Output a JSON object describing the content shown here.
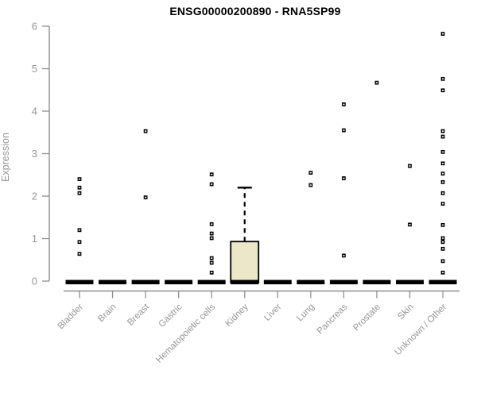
{
  "title": "ENSG00000200890 - RNA5SP99",
  "chart_data": {
    "type": "boxplot",
    "title": "ENSG00000200890 - RNA5SP99",
    "xlabel": "",
    "ylabel": "Expression",
    "ylim": [
      0,
      6
    ],
    "yticks": [
      0,
      1,
      2,
      3,
      4,
      5,
      6
    ],
    "grid": false,
    "legend": "none",
    "categories": [
      "Bladder",
      "Brain",
      "Breast",
      "Gastric",
      "Hematopoietic cells",
      "Kidney",
      "Liver",
      "Lung",
      "Pancreas",
      "Prostate",
      "Skin",
      "Unknown / Other"
    ],
    "series": [
      {
        "category": "Bladder",
        "median": 0,
        "q1": 0,
        "q3": 0,
        "whisker_low": 0,
        "whisker_high": 0,
        "outliers": [
          2.4,
          2.2,
          2.07,
          1.2,
          0.92,
          0.64
        ]
      },
      {
        "category": "Brain",
        "median": 0,
        "q1": 0,
        "q3": 0,
        "whisker_low": 0,
        "whisker_high": 0,
        "outliers": []
      },
      {
        "category": "Breast",
        "median": 0,
        "q1": 0,
        "q3": 0,
        "whisker_low": 0,
        "whisker_high": 0,
        "outliers": [
          3.53,
          1.97
        ]
      },
      {
        "category": "Gastric",
        "median": 0,
        "q1": 0,
        "q3": 0,
        "whisker_low": 0,
        "whisker_high": 0,
        "outliers": []
      },
      {
        "category": "Hematopoietic cells",
        "median": 0,
        "q1": 0,
        "q3": 0,
        "whisker_low": 0,
        "whisker_high": 0,
        "outliers": [
          2.51,
          2.28,
          1.34,
          1.12,
          1.01,
          0.54,
          0.43,
          0.2
        ]
      },
      {
        "category": "Kidney",
        "median": 0,
        "q1": 0,
        "q3": 0.93,
        "whisker_low": 0,
        "whisker_high": 2.2,
        "outliers": []
      },
      {
        "category": "Liver",
        "median": 0,
        "q1": 0,
        "q3": 0,
        "whisker_low": 0,
        "whisker_high": 0,
        "outliers": []
      },
      {
        "category": "Lung",
        "median": 0,
        "q1": 0,
        "q3": 0,
        "whisker_low": 0,
        "whisker_high": 0,
        "outliers": [
          2.55,
          2.26
        ]
      },
      {
        "category": "Pancreas",
        "median": 0,
        "q1": 0,
        "q3": 0,
        "whisker_low": 0,
        "whisker_high": 0,
        "outliers": [
          4.16,
          3.55,
          2.42,
          0.6
        ]
      },
      {
        "category": "Prostate",
        "median": 0,
        "q1": 0,
        "q3": 0,
        "whisker_low": 0,
        "whisker_high": 0,
        "outliers": [
          4.67
        ]
      },
      {
        "category": "Skin",
        "median": 0,
        "q1": 0,
        "q3": 0,
        "whisker_low": 0,
        "whisker_high": 0,
        "outliers": [
          2.71,
          1.33
        ]
      },
      {
        "category": "Unknown / Other",
        "median": 0,
        "q1": 0,
        "q3": 0,
        "whisker_low": 0,
        "whisker_high": 0,
        "outliers": [
          5.82,
          4.76,
          4.49,
          3.53,
          3.4,
          3.04,
          2.77,
          2.53,
          2.33,
          2.07,
          1.82,
          1.32,
          1.01,
          0.92,
          0.76,
          0.47,
          0.2
        ]
      }
    ],
    "colors": {
      "box_fill": "#ece7c8",
      "box_border": "#000000",
      "median": "#000000",
      "point": "#000000",
      "point_center": "#ffffff",
      "axis_line": "#8f8f8f",
      "axis_text": "#969696",
      "title_text": "#000000"
    }
  }
}
